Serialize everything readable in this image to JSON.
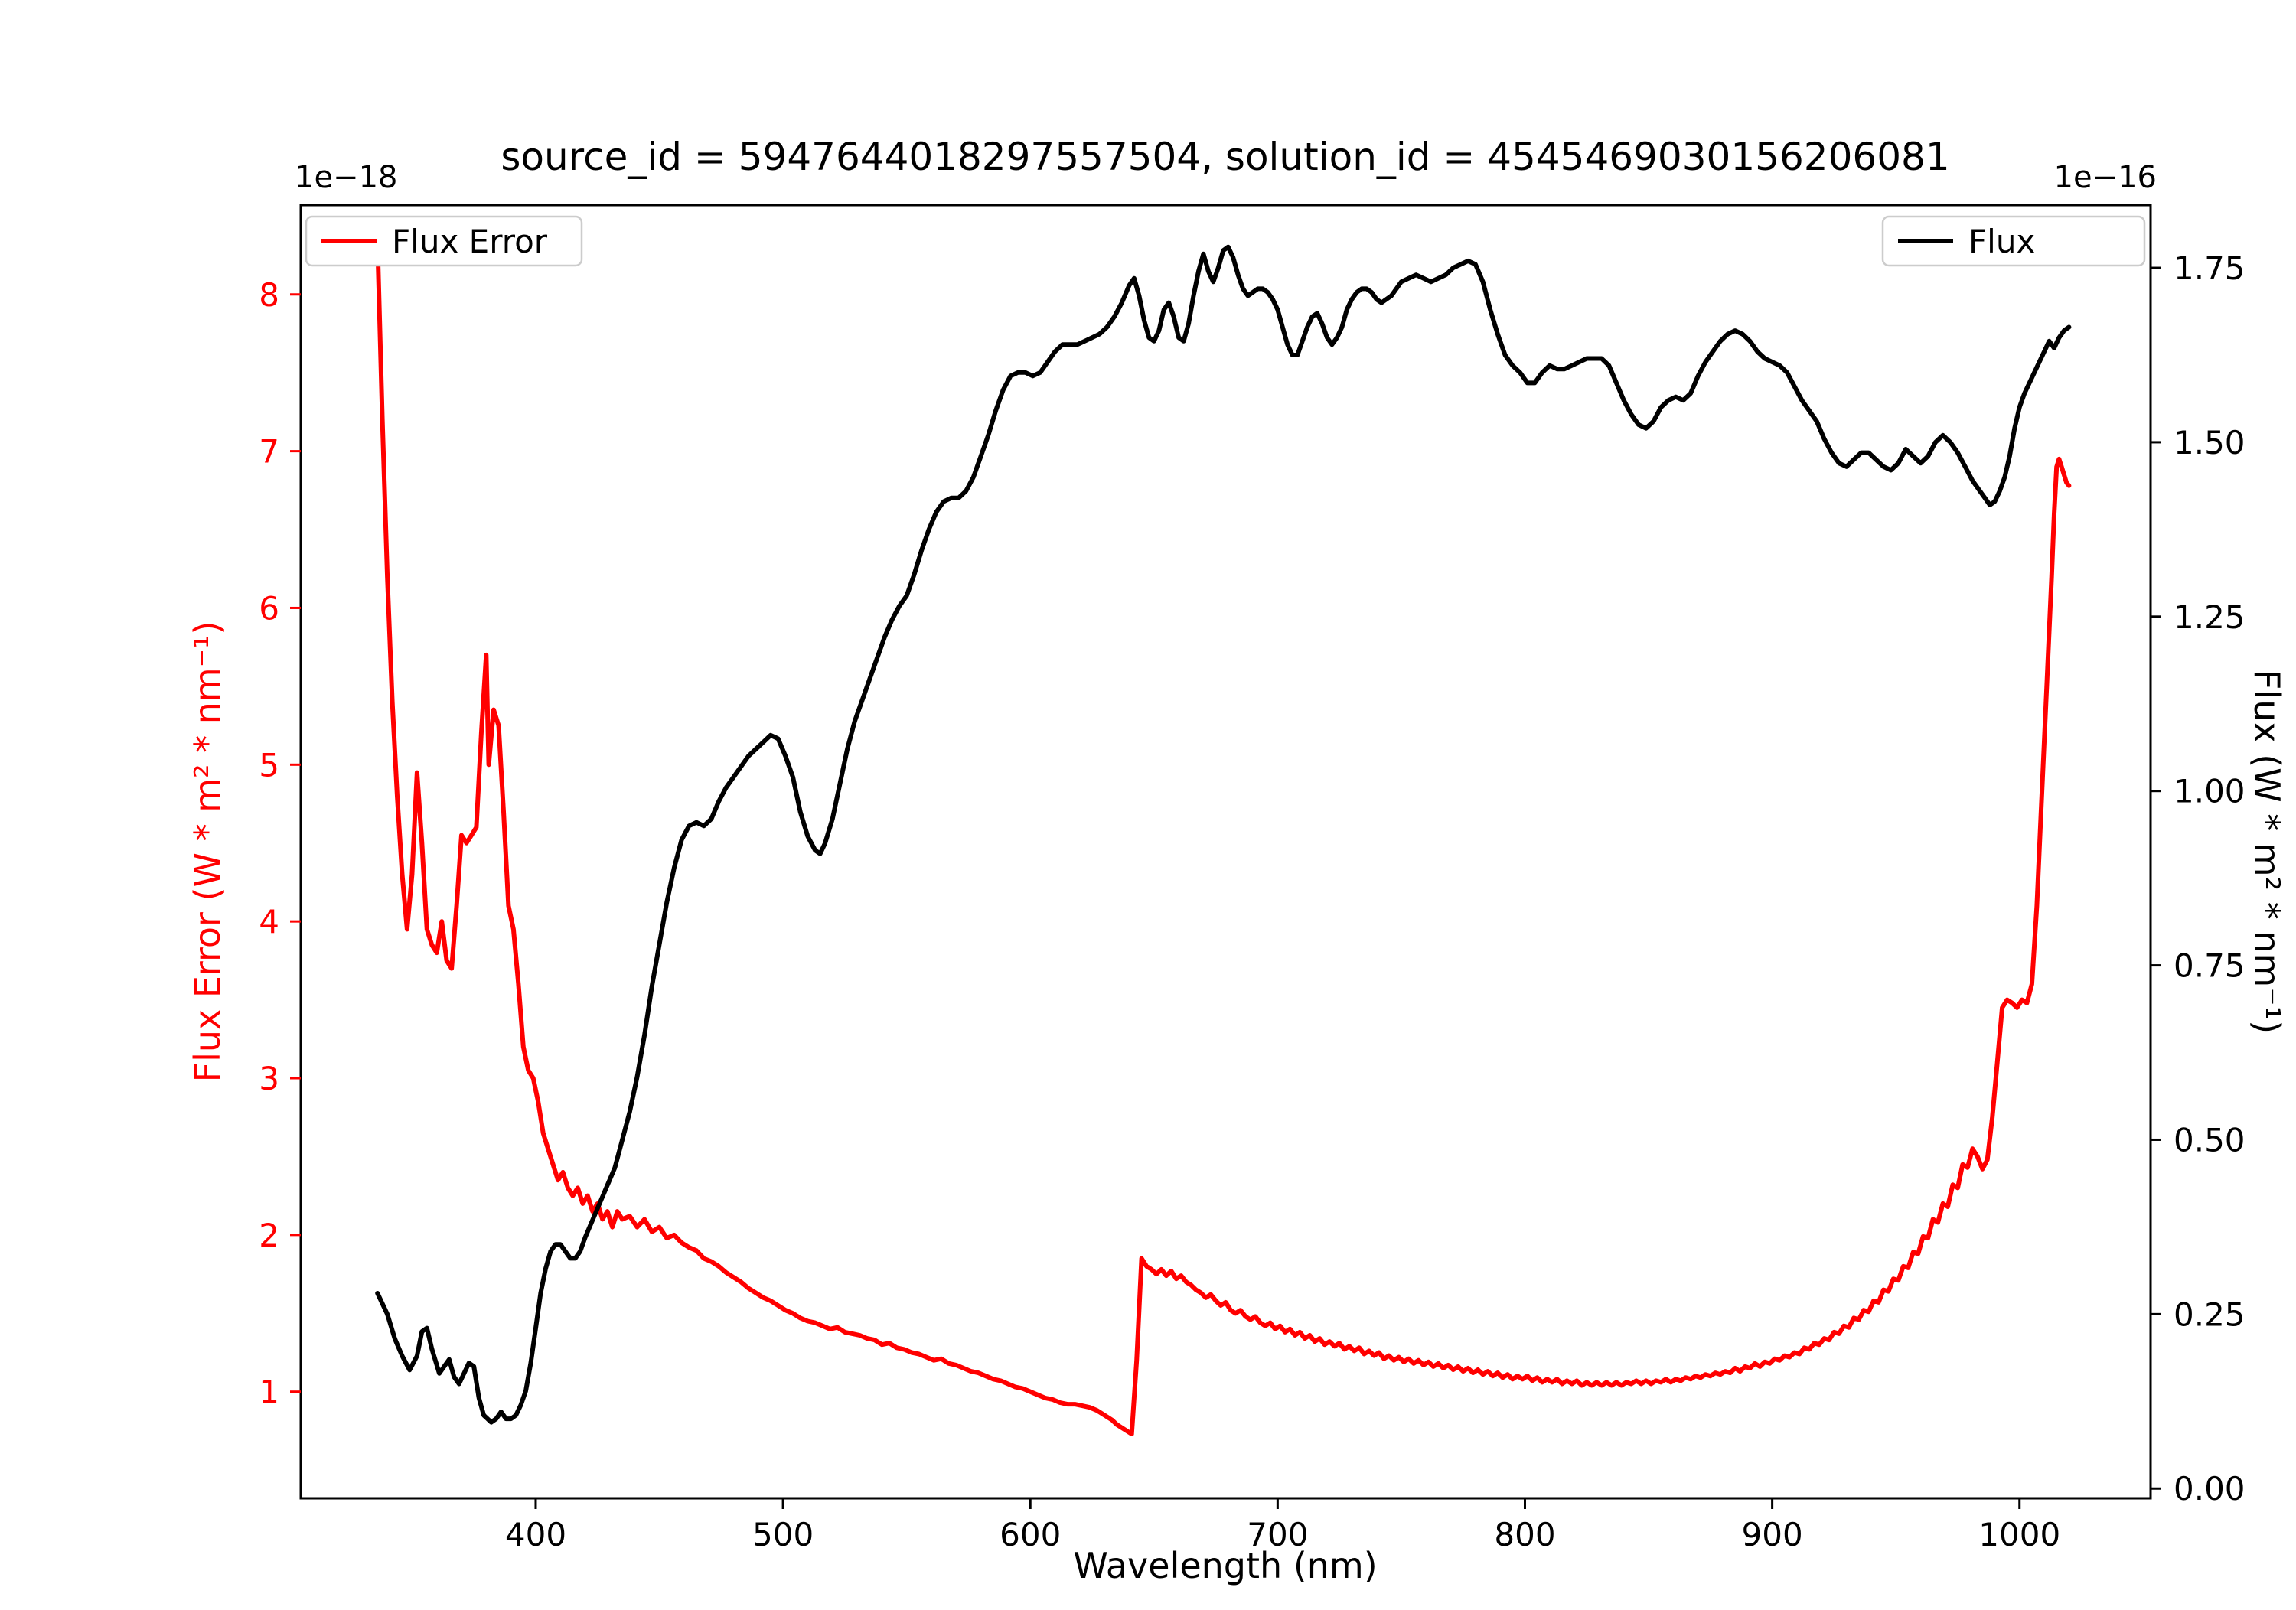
{
  "title": "source_id = 5947644018297557504, solution_id = 4545469030156206081",
  "axes": {
    "x_label": "Wavelength (nm)",
    "y_left_label": "Flux Error (W * m² * nm⁻¹)",
    "y_right_label": "Flux (W * m² * nm⁻¹)",
    "y_left_offset": "1e−18",
    "y_right_offset": "1e−16",
    "x_ticks": [
      400,
      500,
      600,
      700,
      800,
      900,
      1000
    ],
    "y_left_ticks": [
      1,
      2,
      3,
      4,
      5,
      6,
      7,
      8
    ],
    "y_right_ticks": [
      "0.00",
      "0.25",
      "0.50",
      "0.75",
      "1.00",
      "1.25",
      "1.50",
      "1.75"
    ]
  },
  "legend_left": {
    "label": "Flux Error",
    "color": "#ff0000"
  },
  "legend_right": {
    "label": "Flux",
    "color": "#000000"
  },
  "colors": {
    "flux_error": "#ff0000",
    "flux": "#000000",
    "spine": "#000000",
    "legend_edge": "#cccccc"
  },
  "chart_data": {
    "type": "line",
    "title": "source_id = 5947644018297557504, solution_id = 4545469030156206081",
    "xlabel": "Wavelength (nm)",
    "ylabel_left": "Flux Error (W * m² * nm⁻¹)",
    "ylabel_right": "Flux (W * m² * nm⁻¹)",
    "left_scale_factor": "1e-18",
    "right_scale_factor": "1e-16",
    "xlim": [
      305,
      1053
    ],
    "ylim_left": [
      0.32,
      8.57
    ],
    "ylim_right": [
      -0.014,
      1.84
    ],
    "grid": false,
    "legend_positions": [
      "upper left",
      "upper right"
    ],
    "series": [
      {
        "name": "Flux Error",
        "axis": "left",
        "color": "#ff0000",
        "x": [
          336,
          338,
          340,
          342,
          344,
          346,
          348,
          350,
          352,
          354,
          356,
          358,
          360,
          362,
          364,
          366,
          368,
          370,
          372,
          374,
          376,
          378,
          380,
          381,
          383,
          385,
          387,
          389,
          391,
          393,
          395,
          397,
          399,
          401,
          403,
          405,
          407,
          409,
          411,
          413,
          415,
          417,
          419,
          421,
          423,
          425,
          427,
          429,
          431,
          433,
          435,
          438,
          441,
          444,
          447,
          450,
          453,
          456,
          459,
          462,
          465,
          468,
          471,
          474,
          477,
          480,
          483,
          486,
          489,
          492,
          495,
          498,
          501,
          504,
          507,
          510,
          513,
          516,
          519,
          522,
          525,
          528,
          531,
          534,
          537,
          540,
          543,
          546,
          549,
          552,
          555,
          558,
          561,
          564,
          567,
          570,
          573,
          576,
          579,
          582,
          585,
          588,
          591,
          594,
          597,
          600,
          603,
          606,
          609,
          612,
          615,
          618,
          621,
          624,
          627,
          630,
          633,
          635,
          637,
          639,
          641,
          643,
          645,
          647,
          649,
          651,
          653,
          655,
          657,
          659,
          661,
          663,
          665,
          667,
          669,
          671,
          673,
          675,
          677,
          679,
          681,
          683,
          685,
          687,
          689,
          691,
          693,
          695,
          697,
          699,
          701,
          703,
          705,
          707,
          709,
          711,
          713,
          715,
          717,
          719,
          721,
          723,
          725,
          727,
          729,
          731,
          733,
          735,
          737,
          739,
          741,
          743,
          745,
          747,
          749,
          751,
          753,
          755,
          757,
          759,
          761,
          763,
          765,
          767,
          769,
          771,
          773,
          775,
          777,
          779,
          781,
          783,
          785,
          787,
          789,
          791,
          793,
          795,
          797,
          799,
          801,
          803,
          805,
          807,
          809,
          811,
          813,
          815,
          817,
          819,
          821,
          823,
          825,
          827,
          829,
          831,
          833,
          835,
          837,
          839,
          841,
          843,
          845,
          847,
          849,
          851,
          853,
          855,
          857,
          859,
          861,
          863,
          865,
          867,
          869,
          871,
          873,
          875,
          877,
          879,
          881,
          883,
          885,
          887,
          889,
          891,
          893,
          895,
          897,
          899,
          901,
          903,
          905,
          907,
          909,
          911,
          913,
          915,
          917,
          919,
          921,
          923,
          925,
          927,
          929,
          931,
          933,
          935,
          937,
          939,
          941,
          943,
          945,
          947,
          949,
          951,
          953,
          955,
          957,
          959,
          961,
          963,
          965,
          967,
          969,
          971,
          973,
          975,
          977,
          979,
          981,
          983,
          985,
          987,
          989,
          991,
          993,
          995,
          997,
          999,
          1001,
          1003,
          1005,
          1007,
          1009,
          1011,
          1013,
          1014,
          1015,
          1016,
          1017,
          1018,
          1019,
          1020
        ],
        "y": [
          8.35,
          7.2,
          6.2,
          5.4,
          4.8,
          4.3,
          3.95,
          4.3,
          4.95,
          4.5,
          3.95,
          3.85,
          3.8,
          4.0,
          3.75,
          3.7,
          4.1,
          4.55,
          4.5,
          4.55,
          4.6,
          5.2,
          5.7,
          5.0,
          5.35,
          5.25,
          4.7,
          4.1,
          3.95,
          3.6,
          3.2,
          3.05,
          3.0,
          2.85,
          2.65,
          2.55,
          2.45,
          2.35,
          2.4,
          2.3,
          2.25,
          2.3,
          2.2,
          2.25,
          2.15,
          2.2,
          2.1,
          2.15,
          2.05,
          2.15,
          2.1,
          2.12,
          2.05,
          2.1,
          2.02,
          2.05,
          1.98,
          2.0,
          1.95,
          1.92,
          1.9,
          1.85,
          1.83,
          1.8,
          1.76,
          1.73,
          1.7,
          1.66,
          1.63,
          1.6,
          1.58,
          1.55,
          1.52,
          1.5,
          1.47,
          1.45,
          1.44,
          1.42,
          1.4,
          1.41,
          1.38,
          1.37,
          1.36,
          1.34,
          1.33,
          1.3,
          1.31,
          1.28,
          1.27,
          1.25,
          1.24,
          1.22,
          1.2,
          1.21,
          1.18,
          1.17,
          1.15,
          1.13,
          1.12,
          1.1,
          1.08,
          1.07,
          1.05,
          1.03,
          1.02,
          1.0,
          0.98,
          0.96,
          0.95,
          0.93,
          0.92,
          0.92,
          0.91,
          0.9,
          0.88,
          0.85,
          0.82,
          0.79,
          0.77,
          0.75,
          0.73,
          1.2,
          1.85,
          1.8,
          1.78,
          1.75,
          1.78,
          1.74,
          1.77,
          1.72,
          1.74,
          1.7,
          1.68,
          1.65,
          1.63,
          1.6,
          1.62,
          1.58,
          1.55,
          1.57,
          1.52,
          1.5,
          1.52,
          1.48,
          1.46,
          1.48,
          1.44,
          1.42,
          1.44,
          1.4,
          1.42,
          1.38,
          1.4,
          1.36,
          1.38,
          1.34,
          1.36,
          1.32,
          1.34,
          1.3,
          1.32,
          1.29,
          1.31,
          1.27,
          1.29,
          1.26,
          1.28,
          1.24,
          1.26,
          1.23,
          1.25,
          1.21,
          1.23,
          1.2,
          1.22,
          1.19,
          1.21,
          1.18,
          1.2,
          1.17,
          1.19,
          1.16,
          1.18,
          1.15,
          1.17,
          1.14,
          1.16,
          1.13,
          1.15,
          1.12,
          1.14,
          1.11,
          1.13,
          1.1,
          1.12,
          1.09,
          1.11,
          1.08,
          1.1,
          1.08,
          1.1,
          1.07,
          1.09,
          1.06,
          1.08,
          1.06,
          1.08,
          1.05,
          1.07,
          1.05,
          1.07,
          1.04,
          1.06,
          1.04,
          1.06,
          1.04,
          1.06,
          1.04,
          1.06,
          1.04,
          1.06,
          1.05,
          1.07,
          1.05,
          1.07,
          1.05,
          1.07,
          1.06,
          1.08,
          1.06,
          1.08,
          1.07,
          1.09,
          1.08,
          1.1,
          1.09,
          1.11,
          1.1,
          1.12,
          1.11,
          1.13,
          1.12,
          1.15,
          1.13,
          1.16,
          1.15,
          1.18,
          1.16,
          1.19,
          1.18,
          1.21,
          1.2,
          1.23,
          1.22,
          1.25,
          1.24,
          1.28,
          1.27,
          1.31,
          1.3,
          1.34,
          1.33,
          1.38,
          1.37,
          1.42,
          1.41,
          1.47,
          1.46,
          1.52,
          1.51,
          1.58,
          1.57,
          1.65,
          1.64,
          1.72,
          1.71,
          1.8,
          1.79,
          1.89,
          1.88,
          1.99,
          1.98,
          2.1,
          2.08,
          2.2,
          2.18,
          2.32,
          2.3,
          2.45,
          2.43,
          2.55,
          2.5,
          2.42,
          2.48,
          2.75,
          3.1,
          3.45,
          3.5,
          3.48,
          3.45,
          3.5,
          3.48,
          3.6,
          4.1,
          4.8,
          5.5,
          6.2,
          6.6,
          6.9,
          6.95,
          6.9,
          6.85,
          6.8,
          6.78
        ]
      },
      {
        "name": "Flux",
        "axis": "right",
        "color": "#000000",
        "x": [
          336,
          340,
          343,
          346,
          349,
          352,
          354,
          356,
          358,
          361,
          363,
          365,
          367,
          369,
          371,
          373,
          375,
          377,
          379,
          382,
          384,
          386,
          388,
          390,
          392,
          394,
          396,
          398,
          400,
          402,
          404,
          406,
          408,
          410,
          412,
          414,
          416,
          418,
          420,
          423,
          426,
          429,
          432,
          435,
          438,
          441,
          444,
          447,
          450,
          453,
          456,
          459,
          462,
          465,
          468,
          471,
          474,
          477,
          480,
          483,
          486,
          489,
          492,
          495,
          498,
          501,
          504,
          507,
          510,
          513,
          515,
          517,
          520,
          523,
          526,
          529,
          532,
          535,
          538,
          541,
          544,
          547,
          550,
          553,
          556,
          559,
          562,
          565,
          568,
          571,
          574,
          577,
          580,
          583,
          586,
          589,
          592,
          595,
          598,
          601,
          604,
          607,
          610,
          613,
          616,
          619,
          622,
          625,
          628,
          631,
          634,
          637,
          640,
          642,
          644,
          646,
          648,
          650,
          652,
          654,
          656,
          658,
          660,
          662,
          664,
          666,
          668,
          670,
          672,
          674,
          676,
          678,
          680,
          682,
          684,
          686,
          688,
          690,
          692,
          694,
          696,
          698,
          700,
          702,
          704,
          706,
          708,
          710,
          712,
          714,
          716,
          718,
          720,
          722,
          724,
          726,
          728,
          730,
          732,
          734,
          736,
          738,
          740,
          742,
          744,
          746,
          748,
          750,
          753,
          756,
          759,
          762,
          765,
          768,
          771,
          774,
          777,
          780,
          783,
          786,
          789,
          792,
          795,
          798,
          801,
          804,
          807,
          810,
          813,
          816,
          819,
          822,
          825,
          828,
          831,
          834,
          837,
          840,
          843,
          846,
          849,
          852,
          855,
          858,
          861,
          864,
          867,
          870,
          873,
          876,
          879,
          882,
          885,
          888,
          891,
          894,
          897,
          900,
          903,
          906,
          909,
          912,
          915,
          918,
          921,
          924,
          927,
          930,
          933,
          936,
          939,
          942,
          945,
          948,
          951,
          954,
          957,
          960,
          963,
          966,
          969,
          972,
          975,
          978,
          981,
          984,
          986,
          988,
          990,
          992,
          994,
          996,
          998,
          1000,
          1002,
          1004,
          1006,
          1008,
          1010,
          1012,
          1014,
          1016,
          1018,
          1020
        ],
        "y": [
          0.28,
          0.25,
          0.215,
          0.19,
          0.17,
          0.19,
          0.225,
          0.23,
          0.2,
          0.165,
          0.175,
          0.185,
          0.16,
          0.15,
          0.165,
          0.18,
          0.175,
          0.13,
          0.105,
          0.095,
          0.1,
          0.11,
          0.1,
          0.1,
          0.105,
          0.12,
          0.14,
          0.18,
          0.23,
          0.28,
          0.315,
          0.34,
          0.35,
          0.35,
          0.34,
          0.33,
          0.33,
          0.34,
          0.36,
          0.385,
          0.41,
          0.435,
          0.46,
          0.5,
          0.54,
          0.59,
          0.65,
          0.72,
          0.78,
          0.84,
          0.89,
          0.93,
          0.95,
          0.955,
          0.95,
          0.96,
          0.985,
          1.005,
          1.02,
          1.035,
          1.05,
          1.06,
          1.07,
          1.08,
          1.075,
          1.05,
          1.02,
          0.97,
          0.935,
          0.915,
          0.91,
          0.925,
          0.96,
          1.01,
          1.06,
          1.1,
          1.13,
          1.16,
          1.19,
          1.22,
          1.245,
          1.265,
          1.28,
          1.31,
          1.345,
          1.375,
          1.4,
          1.415,
          1.42,
          1.42,
          1.43,
          1.45,
          1.48,
          1.51,
          1.545,
          1.575,
          1.595,
          1.6,
          1.6,
          1.595,
          1.6,
          1.615,
          1.63,
          1.64,
          1.64,
          1.64,
          1.645,
          1.65,
          1.655,
          1.665,
          1.68,
          1.7,
          1.725,
          1.735,
          1.71,
          1.675,
          1.65,
          1.645,
          1.66,
          1.69,
          1.7,
          1.68,
          1.65,
          1.645,
          1.67,
          1.71,
          1.745,
          1.77,
          1.745,
          1.73,
          1.75,
          1.775,
          1.78,
          1.765,
          1.74,
          1.72,
          1.71,
          1.715,
          1.72,
          1.72,
          1.715,
          1.705,
          1.69,
          1.665,
          1.64,
          1.625,
          1.625,
          1.645,
          1.665,
          1.68,
          1.685,
          1.67,
          1.65,
          1.64,
          1.65,
          1.665,
          1.69,
          1.705,
          1.715,
          1.72,
          1.72,
          1.715,
          1.705,
          1.7,
          1.705,
          1.71,
          1.72,
          1.73,
          1.735,
          1.74,
          1.735,
          1.73,
          1.735,
          1.74,
          1.75,
          1.755,
          1.76,
          1.755,
          1.73,
          1.69,
          1.655,
          1.625,
          1.61,
          1.6,
          1.585,
          1.585,
          1.6,
          1.61,
          1.605,
          1.605,
          1.61,
          1.615,
          1.62,
          1.62,
          1.62,
          1.61,
          1.585,
          1.56,
          1.54,
          1.525,
          1.52,
          1.53,
          1.55,
          1.56,
          1.565,
          1.56,
          1.57,
          1.595,
          1.615,
          1.63,
          1.645,
          1.655,
          1.66,
          1.655,
          1.645,
          1.63,
          1.62,
          1.615,
          1.61,
          1.6,
          1.58,
          1.56,
          1.545,
          1.53,
          1.505,
          1.485,
          1.47,
          1.465,
          1.475,
          1.485,
          1.485,
          1.475,
          1.465,
          1.46,
          1.47,
          1.49,
          1.48,
          1.47,
          1.48,
          1.5,
          1.51,
          1.5,
          1.485,
          1.465,
          1.445,
          1.43,
          1.42,
          1.41,
          1.415,
          1.43,
          1.45,
          1.48,
          1.52,
          1.55,
          1.57,
          1.585,
          1.6,
          1.615,
          1.63,
          1.645,
          1.635,
          1.65,
          1.66,
          1.665
        ]
      }
    ]
  }
}
